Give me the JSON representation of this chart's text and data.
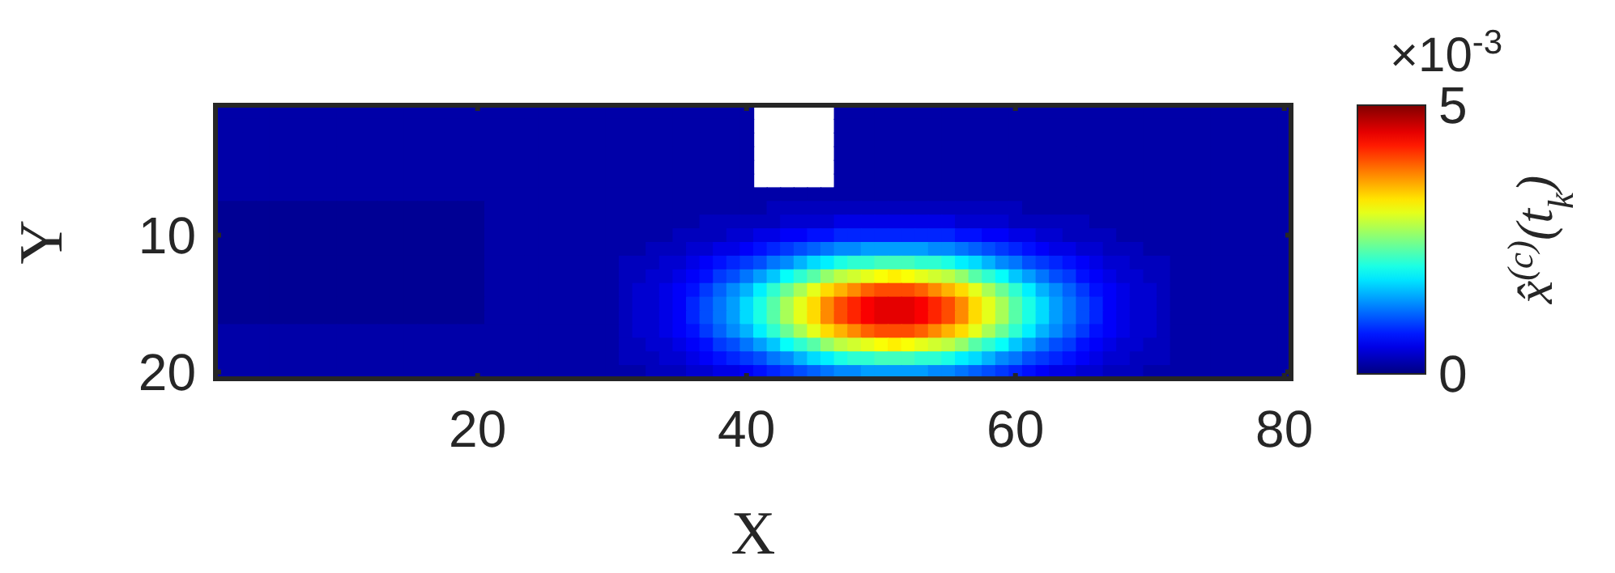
{
  "chart_data": {
    "type": "heatmap",
    "xlabel": "X",
    "ylabel": "Y",
    "clabel": "x̂$^{(c)}$(t$_{k}$)",
    "annotations": [
      "×10$^{-3}$"
    ],
    "categories": [
      null,
      null,
      null,
      null,
      null,
      null,
      null,
      null,
      null,
      null,
      null,
      null,
      null,
      null,
      null,
      null,
      null,
      null,
      null,
      "20",
      null,
      null,
      null,
      null,
      null,
      null,
      null,
      null,
      null,
      null,
      null,
      null,
      null,
      null,
      null,
      null,
      null,
      null,
      null,
      "40",
      null,
      null,
      null,
      null,
      null,
      null,
      null,
      null,
      null,
      null,
      null,
      null,
      null,
      null,
      null,
      null,
      null,
      null,
      null,
      "60",
      null,
      null,
      null,
      null,
      null,
      null,
      null,
      null,
      null,
      null,
      null,
      null,
      null,
      null,
      null,
      null,
      null,
      null,
      null,
      "80"
    ],
    "y_categories": [
      null,
      null,
      null,
      null,
      null,
      null,
      null,
      null,
      null,
      "10",
      null,
      null,
      null,
      null,
      null,
      null,
      null,
      null,
      null,
      "20"
    ],
    "clim": [
      0,
      5
    ],
    "cticks": [
      0,
      5
    ],
    "cells": [
      [
        0.2,
        0.2,
        0.2,
        0.2,
        0.2,
        0.2,
        0.2,
        0.2,
        0.2,
        0.2,
        0.2,
        0.2,
        0.2,
        0.2,
        0.2,
        0.2,
        0.2,
        0.2,
        0.2,
        0.2,
        0.2,
        0.2,
        0.2,
        0.2,
        0.2,
        0.2,
        0.2,
        0.2,
        0.2,
        0.2,
        0.2,
        0.2,
        0.2,
        0.2,
        0.2,
        0.2,
        0.2,
        0.2,
        0.2,
        0.2,
        null,
        null,
        null,
        null,
        null,
        null,
        0.2,
        0.2,
        0.2,
        0.2,
        0.2,
        0.2,
        0.2,
        0.2,
        0.2,
        0.2,
        0.2,
        0.2,
        0.2,
        0.2,
        0.2,
        0.2,
        0.2,
        0.2,
        0.2,
        0.2,
        0.2,
        0.2,
        0.2,
        0.2,
        0.2,
        0.2,
        0.2,
        0.2,
        0.2,
        0.2,
        0.2,
        0.2,
        0.2,
        0.2
      ],
      [
        0.2,
        0.2,
        0.2,
        0.2,
        0.2,
        0.2,
        0.2,
        0.2,
        0.2,
        0.2,
        0.2,
        0.2,
        0.2,
        0.2,
        0.2,
        0.2,
        0.2,
        0.2,
        0.2,
        0.2,
        0.2,
        0.2,
        0.2,
        0.2,
        0.2,
        0.2,
        0.2,
        0.2,
        0.2,
        0.2,
        0.2,
        0.2,
        0.2,
        0.2,
        0.2,
        0.2,
        0.2,
        0.2,
        0.2,
        0.2,
        null,
        null,
        null,
        null,
        null,
        null,
        0.2,
        0.2,
        0.2,
        0.2,
        0.2,
        0.2,
        0.2,
        0.2,
        0.2,
        0.2,
        0.2,
        0.2,
        0.2,
        0.2,
        0.2,
        0.2,
        0.2,
        0.2,
        0.2,
        0.2,
        0.2,
        0.2,
        0.2,
        0.2,
        0.2,
        0.2,
        0.2,
        0.2,
        0.2,
        0.2,
        0.2,
        0.2,
        0.2,
        0.2
      ],
      [
        0.2,
        0.2,
        0.2,
        0.2,
        0.2,
        0.2,
        0.2,
        0.2,
        0.2,
        0.2,
        0.2,
        0.2,
        0.2,
        0.2,
        0.2,
        0.2,
        0.2,
        0.2,
        0.2,
        0.2,
        0.2,
        0.2,
        0.2,
        0.2,
        0.2,
        0.2,
        0.2,
        0.2,
        0.2,
        0.2,
        0.2,
        0.2,
        0.2,
        0.2,
        0.2,
        0.2,
        0.2,
        0.2,
        0.2,
        0.2,
        null,
        null,
        null,
        null,
        null,
        null,
        0.2,
        0.2,
        0.2,
        0.2,
        0.2,
        0.2,
        0.2,
        0.2,
        0.2,
        0.2,
        0.2,
        0.2,
        0.2,
        0.2,
        0.2,
        0.2,
        0.2,
        0.2,
        0.2,
        0.2,
        0.2,
        0.2,
        0.2,
        0.2,
        0.2,
        0.2,
        0.2,
        0.2,
        0.2,
        0.2,
        0.2,
        0.2,
        0.2,
        0.2
      ],
      [
        0.2,
        0.2,
        0.2,
        0.2,
        0.2,
        0.2,
        0.2,
        0.2,
        0.2,
        0.2,
        0.2,
        0.2,
        0.2,
        0.2,
        0.2,
        0.2,
        0.2,
        0.2,
        0.2,
        0.2,
        0.2,
        0.2,
        0.2,
        0.2,
        0.2,
        0.2,
        0.2,
        0.2,
        0.2,
        0.2,
        0.2,
        0.2,
        0.2,
        0.2,
        0.2,
        0.2,
        0.2,
        0.2,
        0.2,
        0.2,
        null,
        null,
        null,
        null,
        null,
        null,
        0.2,
        0.2,
        0.2,
        0.2,
        0.2,
        0.2,
        0.2,
        0.2,
        0.2,
        0.2,
        0.2,
        0.2,
        0.2,
        0.2,
        0.2,
        0.2,
        0.2,
        0.2,
        0.2,
        0.2,
        0.2,
        0.2,
        0.2,
        0.2,
        0.2,
        0.2,
        0.2,
        0.2,
        0.2,
        0.2,
        0.2,
        0.2,
        0.2,
        0.2
      ],
      [
        0.2,
        0.2,
        0.2,
        0.2,
        0.2,
        0.2,
        0.2,
        0.2,
        0.2,
        0.2,
        0.2,
        0.2,
        0.2,
        0.2,
        0.2,
        0.2,
        0.2,
        0.2,
        0.2,
        0.2,
        0.2,
        0.2,
        0.2,
        0.2,
        0.2,
        0.2,
        0.2,
        0.2,
        0.2,
        0.2,
        0.2,
        0.2,
        0.2,
        0.2,
        0.2,
        0.2,
        0.2,
        0.2,
        0.2,
        0.2,
        null,
        null,
        null,
        null,
        null,
        null,
        0.2,
        0.2,
        0.2,
        0.2,
        0.2,
        0.2,
        0.2,
        0.2,
        0.2,
        0.2,
        0.2,
        0.2,
        0.2,
        0.2,
        0.2,
        0.2,
        0.2,
        0.2,
        0.2,
        0.2,
        0.2,
        0.2,
        0.2,
        0.2,
        0.2,
        0.2,
        0.2,
        0.2,
        0.2,
        0.2,
        0.2,
        0.2,
        0.2,
        0.2
      ],
      [
        0.2,
        0.2,
        0.2,
        0.2,
        0.2,
        0.2,
        0.2,
        0.2,
        0.2,
        0.2,
        0.2,
        0.2,
        0.2,
        0.2,
        0.2,
        0.2,
        0.2,
        0.2,
        0.2,
        0.2,
        0.2,
        0.2,
        0.2,
        0.2,
        0.2,
        0.2,
        0.2,
        0.2,
        0.2,
        0.2,
        0.2,
        0.2,
        0.2,
        0.2,
        0.2,
        0.2,
        0.2,
        0.2,
        0.2,
        0.2,
        null,
        null,
        null,
        null,
        null,
        null,
        0.2,
        0.2,
        0.2,
        0.2,
        0.2,
        0.2,
        0.2,
        0.2,
        0.2,
        0.2,
        0.2,
        0.2,
        0.2,
        0.2,
        0.2,
        0.2,
        0.2,
        0.2,
        0.2,
        0.2,
        0.2,
        0.2,
        0.2,
        0.2,
        0.2,
        0.2,
        0.2,
        0.2,
        0.2,
        0.2,
        0.2,
        0.2,
        0.2,
        0.2
      ],
      [
        0.2,
        0.2,
        0.2,
        0.2,
        0.2,
        0.2,
        0.2,
        0.2,
        0.2,
        0.2,
        0.2,
        0.2,
        0.2,
        0.2,
        0.2,
        0.2,
        0.2,
        0.2,
        0.2,
        0.2,
        0.2,
        0.2,
        0.2,
        0.2,
        0.2,
        0.2,
        0.2,
        0.2,
        0.2,
        0.2,
        0.2,
        0.2,
        0.2,
        0.2,
        0.2,
        0.2,
        0.2,
        0.2,
        0.2,
        0.2,
        0.2,
        0.2,
        0.2,
        0.2,
        0.2,
        0.2,
        0.2,
        0.2,
        0.2,
        0.2,
        0.2,
        0.2,
        0.2,
        0.2,
        0.2,
        0.2,
        0.2,
        0.2,
        0.2,
        0.2,
        0.2,
        0.2,
        0.2,
        0.2,
        0.2,
        0.2,
        0.2,
        0.2,
        0.2,
        0.2,
        0.2,
        0.2,
        0.2,
        0.2,
        0.2,
        0.2,
        0.2,
        0.2,
        0.2,
        0.2
      ],
      [
        0.1,
        0.1,
        0.1,
        0.1,
        0.1,
        0.1,
        0.1,
        0.1,
        0.1,
        0.1,
        0.1,
        0.1,
        0.1,
        0.1,
        0.1,
        0.1,
        0.1,
        0.1,
        0.1,
        0.1,
        0.2,
        0.2,
        0.2,
        0.2,
        0.2,
        0.2,
        0.2,
        0.2,
        0.2,
        0.2,
        0.2,
        0.2,
        0.2,
        0.2,
        0.2,
        0.2,
        0.2,
        0.2,
        0.2,
        0.2,
        0.2,
        0.3,
        0.3,
        0.3,
        0.3,
        0.3,
        0.3,
        0.3,
        0.3,
        0.3,
        0.3,
        0.3,
        0.3,
        0.3,
        0.3,
        0.3,
        0.3,
        0.3,
        0.3,
        0.3,
        0.2,
        0.2,
        0.2,
        0.2,
        0.2,
        0.2,
        0.2,
        0.2,
        0.2,
        0.2,
        0.2,
        0.2,
        0.2,
        0.2,
        0.2,
        0.2,
        0.2,
        0.2,
        0.2,
        0.2
      ],
      [
        0.1,
        0.1,
        0.1,
        0.1,
        0.1,
        0.1,
        0.1,
        0.1,
        0.1,
        0.1,
        0.1,
        0.1,
        0.1,
        0.1,
        0.1,
        0.1,
        0.1,
        0.1,
        0.1,
        0.1,
        0.2,
        0.2,
        0.2,
        0.2,
        0.2,
        0.2,
        0.2,
        0.2,
        0.2,
        0.2,
        0.2,
        0.2,
        0.2,
        0.2,
        0.2,
        0.2,
        0.3,
        0.3,
        0.3,
        0.3,
        0.3,
        0.3,
        0.4,
        0.4,
        0.4,
        0.4,
        0.5,
        0.5,
        0.5,
        0.5,
        0.5,
        0.5,
        0.5,
        0.5,
        0.5,
        0.4,
        0.4,
        0.4,
        0.4,
        0.3,
        0.3,
        0.3,
        0.3,
        0.3,
        0.3,
        0.2,
        0.2,
        0.2,
        0.2,
        0.2,
        0.2,
        0.2,
        0.2,
        0.2,
        0.2,
        0.2,
        0.2,
        0.2,
        0.2,
        0.2
      ],
      [
        0.1,
        0.1,
        0.1,
        0.1,
        0.1,
        0.1,
        0.1,
        0.1,
        0.1,
        0.1,
        0.1,
        0.1,
        0.1,
        0.1,
        0.1,
        0.1,
        0.1,
        0.1,
        0.1,
        0.1,
        0.2,
        0.2,
        0.2,
        0.2,
        0.2,
        0.2,
        0.2,
        0.2,
        0.2,
        0.2,
        0.2,
        0.2,
        0.2,
        0.2,
        0.3,
        0.3,
        0.3,
        0.3,
        0.4,
        0.4,
        0.5,
        0.5,
        0.6,
        0.6,
        0.7,
        0.7,
        0.8,
        0.8,
        0.8,
        0.8,
        0.8,
        0.8,
        0.8,
        0.8,
        0.8,
        0.7,
        0.7,
        0.6,
        0.6,
        0.5,
        0.5,
        0.4,
        0.4,
        0.3,
        0.3,
        0.3,
        0.3,
        0.2,
        0.2,
        0.2,
        0.2,
        0.2,
        0.2,
        0.2,
        0.2,
        0.2,
        0.2,
        0.2,
        0.2,
        0.2
      ],
      [
        0.1,
        0.1,
        0.1,
        0.1,
        0.1,
        0.1,
        0.1,
        0.1,
        0.1,
        0.1,
        0.1,
        0.1,
        0.1,
        0.1,
        0.1,
        0.1,
        0.1,
        0.1,
        0.1,
        0.1,
        0.2,
        0.2,
        0.2,
        0.2,
        0.2,
        0.2,
        0.2,
        0.2,
        0.2,
        0.2,
        0.2,
        0.2,
        0.3,
        0.3,
        0.3,
        0.4,
        0.4,
        0.5,
        0.5,
        0.6,
        0.7,
        0.8,
        0.9,
        1.0,
        1.1,
        1.2,
        1.3,
        1.3,
        1.4,
        1.4,
        1.4,
        1.4,
        1.4,
        1.3,
        1.3,
        1.2,
        1.1,
        1.0,
        0.9,
        0.8,
        0.7,
        0.6,
        0.5,
        0.5,
        0.4,
        0.4,
        0.3,
        0.3,
        0.3,
        0.2,
        0.2,
        0.2,
        0.2,
        0.2,
        0.2,
        0.2,
        0.2,
        0.2,
        0.2,
        0.2
      ],
      [
        0.1,
        0.1,
        0.1,
        0.1,
        0.1,
        0.1,
        0.1,
        0.1,
        0.1,
        0.1,
        0.1,
        0.1,
        0.1,
        0.1,
        0.1,
        0.1,
        0.1,
        0.1,
        0.1,
        0.1,
        0.2,
        0.2,
        0.2,
        0.2,
        0.2,
        0.2,
        0.2,
        0.2,
        0.2,
        0.2,
        0.3,
        0.3,
        0.3,
        0.4,
        0.4,
        0.5,
        0.6,
        0.7,
        0.8,
        0.9,
        1.0,
        1.2,
        1.3,
        1.5,
        1.7,
        1.8,
        2.0,
        2.1,
        2.1,
        2.2,
        2.2,
        2.2,
        2.1,
        2.1,
        2.0,
        1.8,
        1.7,
        1.5,
        1.3,
        1.2,
        1.0,
        0.9,
        0.8,
        0.7,
        0.6,
        0.5,
        0.4,
        0.4,
        0.3,
        0.3,
        0.3,
        0.2,
        0.2,
        0.2,
        0.2,
        0.2,
        0.2,
        0.2,
        0.2,
        0.2
      ],
      [
        0.1,
        0.1,
        0.1,
        0.1,
        0.1,
        0.1,
        0.1,
        0.1,
        0.1,
        0.1,
        0.1,
        0.1,
        0.1,
        0.1,
        0.1,
        0.1,
        0.1,
        0.1,
        0.1,
        0.1,
        0.2,
        0.2,
        0.2,
        0.2,
        0.2,
        0.2,
        0.2,
        0.2,
        0.2,
        0.2,
        0.3,
        0.3,
        0.4,
        0.4,
        0.5,
        0.6,
        0.7,
        0.9,
        1.0,
        1.2,
        1.4,
        1.6,
        1.9,
        2.1,
        2.3,
        2.6,
        2.8,
        2.9,
        3.0,
        3.1,
        3.2,
        3.1,
        3.0,
        2.9,
        2.8,
        2.6,
        2.3,
        2.1,
        1.9,
        1.6,
        1.4,
        1.2,
        1.0,
        0.9,
        0.7,
        0.6,
        0.5,
        0.4,
        0.4,
        0.3,
        0.3,
        0.2,
        0.2,
        0.2,
        0.2,
        0.2,
        0.2,
        0.2,
        0.2,
        0.2
      ],
      [
        0.1,
        0.1,
        0.1,
        0.1,
        0.1,
        0.1,
        0.1,
        0.1,
        0.1,
        0.1,
        0.1,
        0.1,
        0.1,
        0.1,
        0.1,
        0.1,
        0.1,
        0.1,
        0.1,
        0.1,
        0.2,
        0.2,
        0.2,
        0.2,
        0.2,
        0.2,
        0.2,
        0.2,
        0.2,
        0.2,
        0.3,
        0.4,
        0.4,
        0.5,
        0.6,
        0.7,
        0.9,
        1.1,
        1.3,
        1.5,
        1.8,
        2.1,
        2.4,
        2.7,
        3.0,
        3.3,
        3.5,
        3.7,
        3.9,
        4.0,
        4.0,
        4.0,
        3.9,
        3.7,
        3.5,
        3.3,
        3.0,
        2.7,
        2.4,
        2.1,
        1.8,
        1.5,
        1.3,
        1.1,
        0.9,
        0.7,
        0.6,
        0.5,
        0.4,
        0.4,
        0.3,
        0.2,
        0.2,
        0.2,
        0.2,
        0.2,
        0.2,
        0.2,
        0.2,
        0.2
      ],
      [
        0.1,
        0.1,
        0.1,
        0.1,
        0.1,
        0.1,
        0.1,
        0.1,
        0.1,
        0.1,
        0.1,
        0.1,
        0.1,
        0.1,
        0.1,
        0.1,
        0.1,
        0.1,
        0.1,
        0.1,
        0.2,
        0.2,
        0.2,
        0.2,
        0.2,
        0.2,
        0.2,
        0.2,
        0.2,
        0.2,
        0.3,
        0.4,
        0.4,
        0.5,
        0.6,
        0.8,
        1.0,
        1.2,
        1.4,
        1.7,
        2.0,
        2.3,
        2.7,
        3.0,
        3.3,
        3.7,
        4.0,
        4.2,
        4.4,
        4.5,
        4.5,
        4.5,
        4.4,
        4.2,
        4.0,
        3.7,
        3.3,
        3.0,
        2.7,
        2.3,
        2.0,
        1.7,
        1.4,
        1.2,
        1.0,
        0.8,
        0.6,
        0.5,
        0.4,
        0.4,
        0.3,
        0.2,
        0.2,
        0.2,
        0.2,
        0.2,
        0.2,
        0.2,
        0.2,
        0.2
      ],
      [
        0.1,
        0.1,
        0.1,
        0.1,
        0.1,
        0.1,
        0.1,
        0.1,
        0.1,
        0.1,
        0.1,
        0.1,
        0.1,
        0.1,
        0.1,
        0.1,
        0.1,
        0.1,
        0.1,
        0.1,
        0.2,
        0.2,
        0.2,
        0.2,
        0.2,
        0.2,
        0.2,
        0.2,
        0.2,
        0.2,
        0.3,
        0.4,
        0.4,
        0.5,
        0.6,
        0.8,
        1.0,
        1.2,
        1.4,
        1.7,
        2.0,
        2.3,
        2.7,
        3.0,
        3.3,
        3.7,
        4.0,
        4.2,
        4.4,
        4.5,
        4.5,
        4.5,
        4.4,
        4.2,
        4.0,
        3.7,
        3.3,
        3.0,
        2.7,
        2.3,
        2.0,
        1.7,
        1.4,
        1.2,
        1.0,
        0.8,
        0.6,
        0.5,
        0.4,
        0.4,
        0.3,
        0.2,
        0.2,
        0.2,
        0.2,
        0.2,
        0.2,
        0.2,
        0.2,
        0.2
      ],
      [
        0.2,
        0.2,
        0.2,
        0.2,
        0.2,
        0.2,
        0.2,
        0.2,
        0.2,
        0.2,
        0.2,
        0.2,
        0.2,
        0.2,
        0.2,
        0.2,
        0.2,
        0.2,
        0.2,
        0.2,
        0.2,
        0.2,
        0.2,
        0.2,
        0.2,
        0.2,
        0.2,
        0.2,
        0.2,
        0.2,
        0.3,
        0.4,
        0.4,
        0.5,
        0.6,
        0.7,
        0.9,
        1.1,
        1.3,
        1.5,
        1.8,
        2.1,
        2.4,
        2.7,
        3.0,
        3.3,
        3.5,
        3.7,
        3.9,
        4.0,
        4.0,
        4.0,
        3.9,
        3.7,
        3.5,
        3.3,
        3.0,
        2.7,
        2.4,
        2.1,
        1.8,
        1.5,
        1.3,
        1.1,
        0.9,
        0.7,
        0.6,
        0.5,
        0.4,
        0.4,
        0.3,
        0.2,
        0.2,
        0.2,
        0.2,
        0.2,
        0.2,
        0.2,
        0.2,
        0.2
      ],
      [
        0.2,
        0.2,
        0.2,
        0.2,
        0.2,
        0.2,
        0.2,
        0.2,
        0.2,
        0.2,
        0.2,
        0.2,
        0.2,
        0.2,
        0.2,
        0.2,
        0.2,
        0.2,
        0.2,
        0.2,
        0.2,
        0.2,
        0.2,
        0.2,
        0.2,
        0.2,
        0.2,
        0.2,
        0.2,
        0.2,
        0.3,
        0.3,
        0.4,
        0.4,
        0.5,
        0.6,
        0.7,
        0.9,
        1.0,
        1.2,
        1.4,
        1.6,
        1.9,
        2.1,
        2.3,
        2.6,
        2.8,
        2.9,
        3.0,
        3.1,
        3.2,
        3.1,
        3.0,
        2.9,
        2.8,
        2.6,
        2.3,
        2.1,
        1.9,
        1.6,
        1.4,
        1.2,
        1.0,
        0.9,
        0.7,
        0.6,
        0.5,
        0.4,
        0.4,
        0.3,
        0.3,
        0.2,
        0.2,
        0.2,
        0.2,
        0.2,
        0.2,
        0.2,
        0.2,
        0.2
      ],
      [
        0.2,
        0.2,
        0.2,
        0.2,
        0.2,
        0.2,
        0.2,
        0.2,
        0.2,
        0.2,
        0.2,
        0.2,
        0.2,
        0.2,
        0.2,
        0.2,
        0.2,
        0.2,
        0.2,
        0.2,
        0.2,
        0.2,
        0.2,
        0.2,
        0.2,
        0.2,
        0.2,
        0.2,
        0.2,
        0.2,
        0.3,
        0.3,
        0.3,
        0.4,
        0.4,
        0.5,
        0.6,
        0.7,
        0.8,
        0.9,
        1.0,
        1.2,
        1.3,
        1.5,
        1.7,
        1.8,
        2.0,
        2.1,
        2.1,
        2.2,
        2.2,
        2.2,
        2.1,
        2.1,
        2.0,
        1.8,
        1.7,
        1.5,
        1.3,
        1.2,
        1.0,
        0.9,
        0.8,
        0.7,
        0.6,
        0.5,
        0.4,
        0.4,
        0.3,
        0.3,
        0.3,
        0.2,
        0.2,
        0.2,
        0.2,
        0.2,
        0.2,
        0.2,
        0.2,
        0.2
      ],
      [
        0.2,
        0.2,
        0.2,
        0.2,
        0.2,
        0.2,
        0.2,
        0.2,
        0.2,
        0.2,
        0.2,
        0.2,
        0.2,
        0.2,
        0.2,
        0.2,
        0.2,
        0.2,
        0.2,
        0.2,
        0.2,
        0.2,
        0.2,
        0.2,
        0.2,
        0.2,
        0.2,
        0.2,
        0.2,
        0.2,
        0.2,
        0.2,
        0.3,
        0.3,
        0.3,
        0.4,
        0.4,
        0.5,
        0.5,
        0.6,
        0.7,
        0.8,
        0.9,
        1.0,
        1.1,
        1.2,
        1.3,
        1.3,
        1.4,
        1.4,
        1.4,
        1.4,
        1.4,
        1.3,
        1.3,
        1.2,
        1.1,
        1.0,
        0.9,
        0.8,
        0.7,
        0.6,
        0.5,
        0.5,
        0.4,
        0.4,
        0.3,
        0.3,
        0.3,
        0.2,
        0.2,
        0.2,
        0.2,
        0.2,
        0.2,
        0.2,
        0.2,
        0.2,
        0.2,
        0.2
      ]
    ]
  }
}
